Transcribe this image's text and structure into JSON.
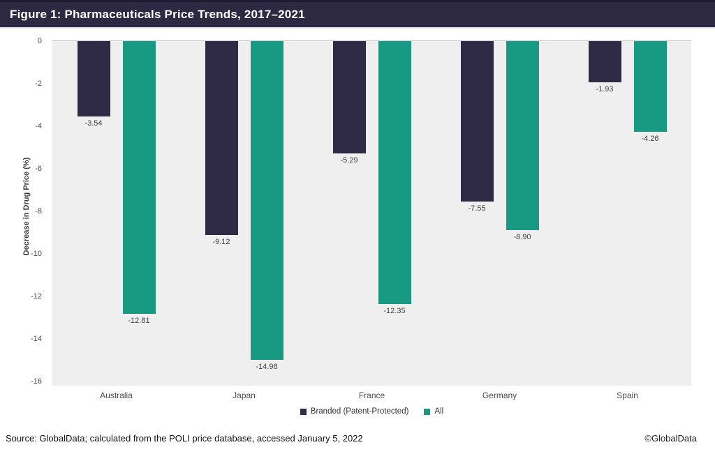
{
  "header": {
    "title": "Figure 1: Pharmaceuticals Price Trends, 2017–2021"
  },
  "chart_data": {
    "type": "bar",
    "categories": [
      "Australia",
      "Japan",
      "France",
      "Germany",
      "Spain"
    ],
    "series": [
      {
        "name": "Branded (Patent-Protected)",
        "color": "#2f2a45",
        "values": [
          -3.54,
          -9.12,
          -5.29,
          -7.55,
          -1.93
        ]
      },
      {
        "name": "All",
        "color": "#189981",
        "values": [
          -12.81,
          -14.98,
          -12.35,
          -8.9,
          -4.26
        ]
      }
    ],
    "title": "Figure 1: Pharmaceuticals Price Trends, 2017–2021",
    "xlabel": "",
    "ylabel": "Decrease in Drug Price (%)",
    "ylim": [
      -16,
      0
    ],
    "yticks": [
      0,
      -2,
      -4,
      -6,
      -8,
      -10,
      -12,
      -14,
      -16
    ],
    "grid": "zero-line-only",
    "legend_position": "bottom-center",
    "plot_background": "#f0eff0",
    "data_label_format": "two-decimals"
  },
  "footer": {
    "source": "Source: GlobalData; calculated from the POLI price database, accessed January 5, 2022",
    "copyright": "©GlobalData"
  }
}
